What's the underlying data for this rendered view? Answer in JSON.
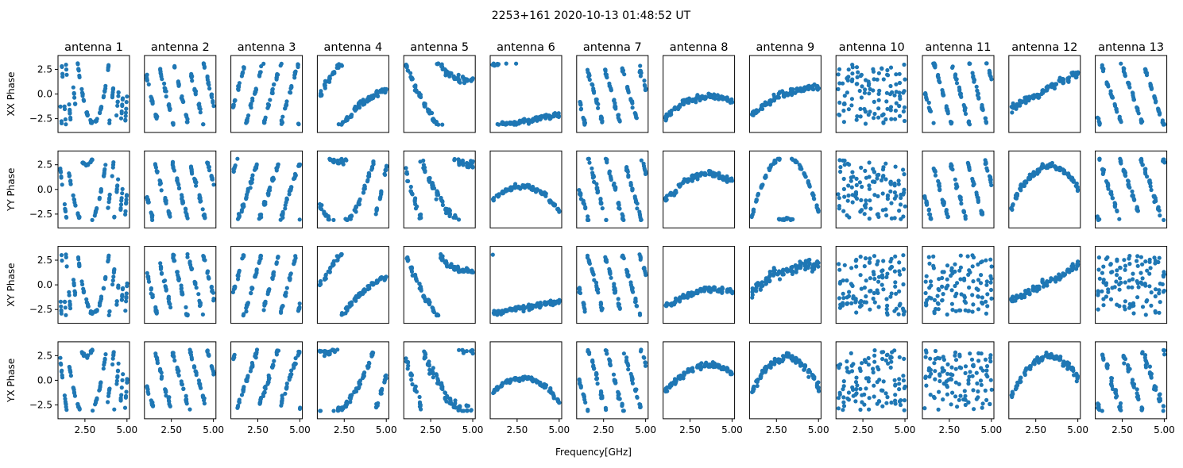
{
  "chart_data": {
    "type": "scatter",
    "title": "2253+161 2020-10-13 01:48:52 UT",
    "xlabel": "Frequency[GHz]",
    "xlim": [
      0.9,
      5.15
    ],
    "ylim": [
      -3.9,
      3.9
    ],
    "x_ticks": [
      2.5,
      5.0
    ],
    "x_tick_labels": [
      "2.50",
      "5.00"
    ],
    "y_ticks": [
      2.5,
      0.0,
      -2.5
    ],
    "y_tick_labels": [
      "2.5",
      "0.0",
      "−2.5"
    ],
    "columns": [
      "antenna 1",
      "antenna 2",
      "antenna 3",
      "antenna 4",
      "antenna 5",
      "antenna 6",
      "antenna 7",
      "antenna 8",
      "antenna 9",
      "antenna 10",
      "antenna 11",
      "antenna 12",
      "antenna 13"
    ],
    "rows": [
      "XX Phase",
      "YY Phase",
      "XY Phase",
      "YX Phase"
    ],
    "marker_color": "#1f77b4",
    "freq_range_ghz": [
      1.1,
      4.95
    ],
    "panel_model_note": "phase = wrap(phase_at_3ghz + slope*(f-3) + curvature*(f-3)^2) + noise; random=true means uniform phase",
    "panels": [
      [
        {
          "slope": 0,
          "phase_at_3ghz": -2.9,
          "curvature": 7,
          "noise": 0.15
        },
        {
          "slope": -7,
          "phase_at_3ghz": 0.5,
          "curvature": 0,
          "noise": 0.3
        },
        {
          "slope": 6,
          "phase_at_3ghz": -2,
          "curvature": 0,
          "noise": 0.25
        },
        {
          "slope": 1.7,
          "phase_at_3ghz": -1.8,
          "curvature": -0.3,
          "noise": 0.3
        },
        {
          "slope": -2,
          "phase_at_3ghz": 3.0,
          "curvature": 0.6,
          "noise": 0.3
        },
        {
          "slope": 0.3,
          "phase_at_3ghz": -2.7,
          "curvature": 0,
          "noise": 0.25
        },
        {
          "slope": -6,
          "phase_at_3ghz": 0,
          "curvature": 0,
          "noise": 0.3
        },
        {
          "slope": 0.4,
          "phase_at_3ghz": -0.4,
          "curvature": -0.3,
          "noise": 0.25
        },
        {
          "slope": 0.7,
          "phase_at_3ghz": 0,
          "curvature": -0.2,
          "noise": 0.3
        },
        {
          "random": true
        },
        {
          "slope": -6,
          "phase_at_3ghz": 1,
          "curvature": 0,
          "noise": 0.25
        },
        {
          "slope": 0.9,
          "phase_at_3ghz": 0.3,
          "curvature": 0,
          "noise": 0.35
        },
        {
          "slope": -5,
          "phase_at_3ghz": 0.5,
          "curvature": 0,
          "noise": 0.25
        }
      ],
      [
        {
          "slope": 4,
          "phase_at_3ghz": -3,
          "curvature": 5,
          "noise": 0.15
        },
        {
          "slope": -6,
          "phase_at_3ghz": 0,
          "curvature": 0,
          "noise": 0.3
        },
        {
          "slope": 5,
          "phase_at_3ghz": -1,
          "curvature": 0,
          "noise": 0.3
        },
        {
          "slope": 2.5,
          "phase_at_3ghz": -2.5,
          "curvature": 1.5,
          "noise": 0.3
        },
        {
          "slope": -3,
          "phase_at_3ghz": -1,
          "curvature": 0.8,
          "noise": 0.5
        },
        {
          "slope": -0.2,
          "phase_at_3ghz": 0.3,
          "curvature": -0.5,
          "noise": 0.2
        },
        {
          "slope": -6,
          "phase_at_3ghz": 1,
          "curvature": 0,
          "noise": 0.3
        },
        {
          "slope": 0.5,
          "phase_at_3ghz": 1.4,
          "curvature": -0.4,
          "noise": 0.3
        },
        {
          "slope": 0.15,
          "phase_at_3ghz": -2.9,
          "curvature": -1.5,
          "noise": 0.15
        },
        {
          "random": true
        },
        {
          "slope": -6,
          "phase_at_3ghz": 0,
          "curvature": 0,
          "noise": 0.3
        },
        {
          "slope": 0.5,
          "phase_at_3ghz": 2.3,
          "curvature": -0.8,
          "noise": 0.3
        },
        {
          "slope": -5,
          "phase_at_3ghz": 0,
          "curvature": 0,
          "noise": 0.3
        }
      ],
      [
        {
          "slope": 0,
          "phase_at_3ghz": -2.9,
          "curvature": 7,
          "noise": 0.15
        },
        {
          "slope": -7,
          "phase_at_3ghz": 0.2,
          "curvature": 0,
          "noise": 0.3
        },
        {
          "slope": 6,
          "phase_at_3ghz": -1.5,
          "curvature": 0,
          "noise": 0.25
        },
        {
          "slope": 1.8,
          "phase_at_3ghz": -1.7,
          "curvature": -0.3,
          "noise": 0.3
        },
        {
          "slope": -2,
          "phase_at_3ghz": 3.0,
          "curvature": 0.6,
          "noise": 0.3
        },
        {
          "slope": 0.3,
          "phase_at_3ghz": -2.3,
          "curvature": 0,
          "noise": 0.25
        },
        {
          "slope": -6,
          "phase_at_3ghz": 0.5,
          "curvature": 0,
          "noise": 0.3
        },
        {
          "slope": 0.4,
          "phase_at_3ghz": -0.7,
          "curvature": -0.2,
          "noise": 0.25
        },
        {
          "slope": 0.7,
          "phase_at_3ghz": 1.5,
          "curvature": -0.2,
          "noise": 0.5
        },
        {
          "random": true
        },
        {
          "random": true
        },
        {
          "slope": 0.9,
          "phase_at_3ghz": 0.1,
          "curvature": 0,
          "noise": 0.35
        },
        {
          "random": true
        }
      ],
      [
        {
          "slope": 4,
          "phase_at_3ghz": -3,
          "curvature": 5,
          "noise": 0.15
        },
        {
          "slope": -6,
          "phase_at_3ghz": 0.3,
          "curvature": 0,
          "noise": 0.3
        },
        {
          "slope": 5,
          "phase_at_3ghz": -0.5,
          "curvature": 0,
          "noise": 0.3
        },
        {
          "slope": 2.5,
          "phase_at_3ghz": -1.5,
          "curvature": 0.8,
          "noise": 0.3
        },
        {
          "slope": -3,
          "phase_at_3ghz": -0.5,
          "curvature": 0.8,
          "noise": 0.5
        },
        {
          "slope": -0.2,
          "phase_at_3ghz": 0.2,
          "curvature": -0.5,
          "noise": 0.2
        },
        {
          "slope": -6,
          "phase_at_3ghz": 1,
          "curvature": 0,
          "noise": 0.3
        },
        {
          "slope": 0.5,
          "phase_at_3ghz": 1.4,
          "curvature": -0.4,
          "noise": 0.3
        },
        {
          "slope": 0.2,
          "phase_at_3ghz": 2.3,
          "curvature": -0.8,
          "noise": 0.4
        },
        {
          "random": true
        },
        {
          "random": true
        },
        {
          "slope": 0.5,
          "phase_at_3ghz": 2.4,
          "curvature": -0.8,
          "noise": 0.3
        },
        {
          "slope": -5,
          "phase_at_3ghz": 0.5,
          "curvature": 0,
          "noise": 0.5
        }
      ]
    ]
  }
}
